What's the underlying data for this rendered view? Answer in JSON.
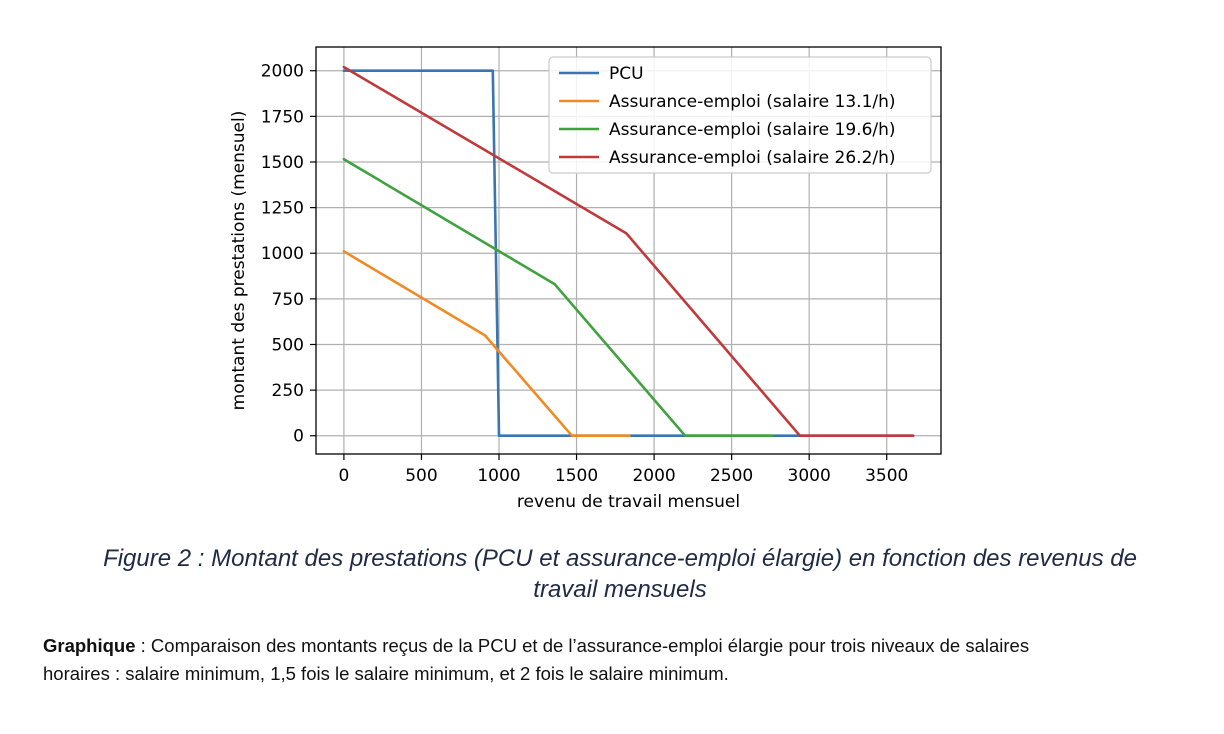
{
  "chart_data": {
    "type": "line",
    "title": "",
    "xlabel": "revenu de travail mensuel",
    "ylabel": "montant des prestations (mensuel)",
    "xlim": [
      -180,
      3850
    ],
    "ylim": [
      -100,
      2130
    ],
    "xticks": [
      0,
      500,
      1000,
      1500,
      2000,
      2500,
      3000,
      3500
    ],
    "yticks": [
      0,
      250,
      500,
      750,
      1000,
      1250,
      1500,
      1750,
      2000
    ],
    "grid": true,
    "legend_position": "top-right",
    "series": [
      {
        "name": "PCU",
        "color": "#3a75b0",
        "points": [
          [
            0,
            2000
          ],
          [
            960,
            2000
          ],
          [
            1000,
            0
          ],
          [
            3670,
            0
          ]
        ]
      },
      {
        "name": "Assurance-emploi (salaire 13.1/h)",
        "color": "#f08a24",
        "points": [
          [
            0,
            1010
          ],
          [
            910,
            550
          ],
          [
            1470,
            0
          ],
          [
            1840,
            0
          ]
        ]
      },
      {
        "name": "Assurance-emploi (salaire 19.6/h)",
        "color": "#3fa23f",
        "points": [
          [
            0,
            1515
          ],
          [
            1360,
            830
          ],
          [
            2200,
            0
          ],
          [
            2760,
            0
          ]
        ]
      },
      {
        "name": "Assurance-emploi (salaire 26.2/h)",
        "color": "#c0393b",
        "points": [
          [
            0,
            2020
          ],
          [
            1820,
            1110
          ],
          [
            2940,
            0
          ],
          [
            3670,
            0
          ]
        ]
      }
    ]
  },
  "caption": {
    "line1": "Figure 2 : Montant des prestations (PCU et assurance-emploi élargie) en fonction des revenus de",
    "line2": "travail mensuels"
  },
  "description": {
    "bold": "Graphique",
    "line1": " : Comparaison des montants reçus de la PCU et de l’assurance-emploi élargie pour trois niveaux de salaires",
    "line2": "horaires : salaire minimum, 1,5 fois le salaire minimum, et 2 fois le salaire minimum."
  }
}
